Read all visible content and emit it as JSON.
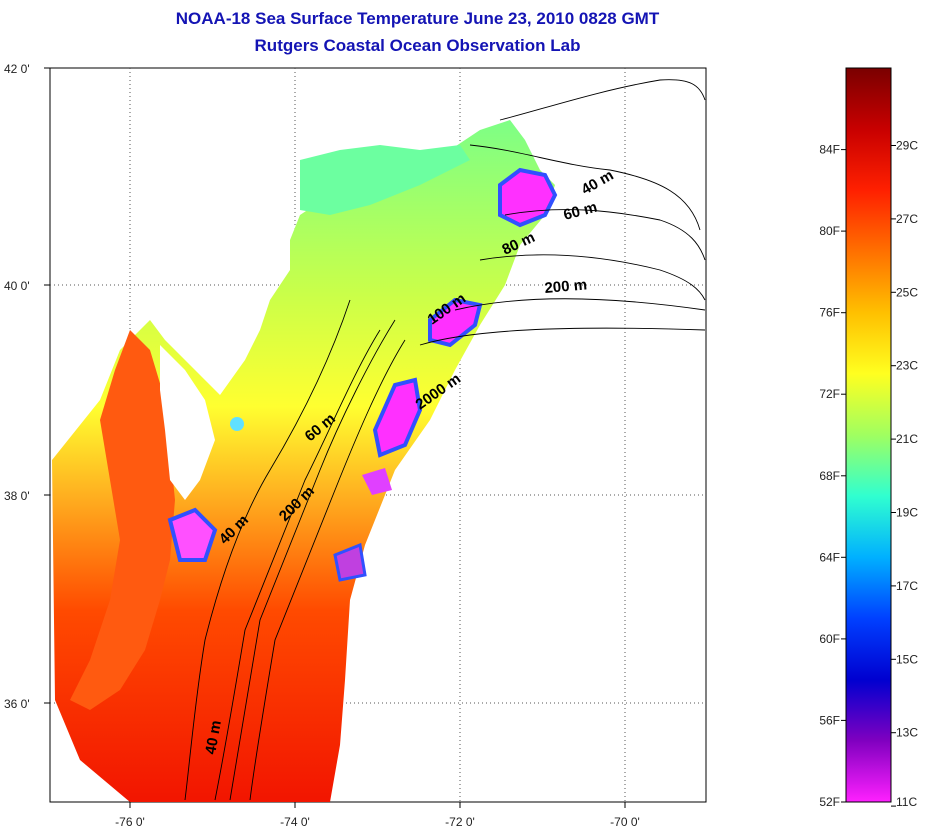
{
  "title": "NOAA-18 Sea Surface Temperature June 23, 2010 0828 GMT",
  "subtitle": "Rutgers Coastal Ocean Observation Lab",
  "map": {
    "lat_labels": [
      "42 0'",
      "40 0'",
      "38 0'",
      "36 0'"
    ],
    "lon_labels": [
      "-76 0'",
      "-74 0'",
      "-72 0'",
      "-70 0'"
    ]
  },
  "contour_labels": [
    "40 m",
    "60 m",
    "80 m",
    "200 m",
    "100 m",
    "2000 m",
    "60 m",
    "200 m",
    "40 m",
    "40 m"
  ],
  "colorbar": {
    "fahrenheit_labels": [
      "84F",
      "80F",
      "76F",
      "72F",
      "68F",
      "64F",
      "60F",
      "56F",
      "52F"
    ],
    "celsius_labels": [
      "29C",
      "27C",
      "25C",
      "23C",
      "21C",
      "19C",
      "17C",
      "15C",
      "13C",
      "11C"
    ],
    "colors": [
      "#7a0000",
      "#c80000",
      "#ff2000",
      "#ff7000",
      "#ffc000",
      "#ffff20",
      "#a0ff60",
      "#30ffd0",
      "#00b0ff",
      "#0040ff",
      "#0000d0",
      "#8000c0",
      "#ff20ff"
    ]
  }
}
